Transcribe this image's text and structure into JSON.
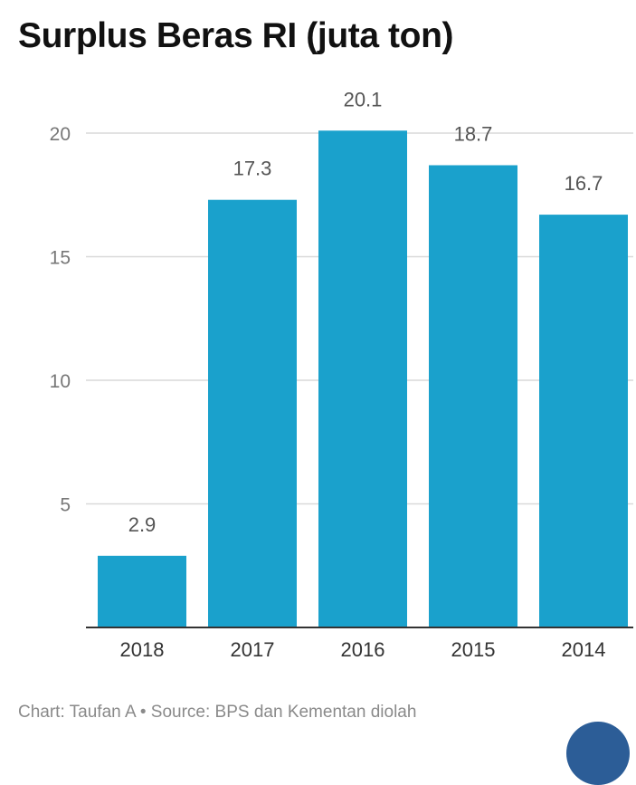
{
  "chart_data": {
    "type": "bar",
    "title": "Surplus Beras RI (juta ton)",
    "categories": [
      "2018",
      "2017",
      "2016",
      "2015",
      "2014"
    ],
    "values": [
      2.9,
      17.3,
      20.1,
      18.7,
      16.7
    ],
    "value_labels": [
      "2.9",
      "17.3",
      "20.1",
      "18.7",
      "16.7"
    ],
    "yticks": [
      5,
      10,
      15,
      20
    ],
    "ytick_labels": [
      "5",
      "10",
      "15",
      "20"
    ],
    "ylim": [
      0,
      20
    ],
    "xlabel": "",
    "ylabel": "",
    "grid": true,
    "bar_color": "#1aa1cc"
  },
  "footer": {
    "text": "Chart: Taufan A • Source: BPS dan Kementan diolah"
  },
  "colors": {
    "bar": "#1aa1cc",
    "badge": "#2c5d97"
  }
}
